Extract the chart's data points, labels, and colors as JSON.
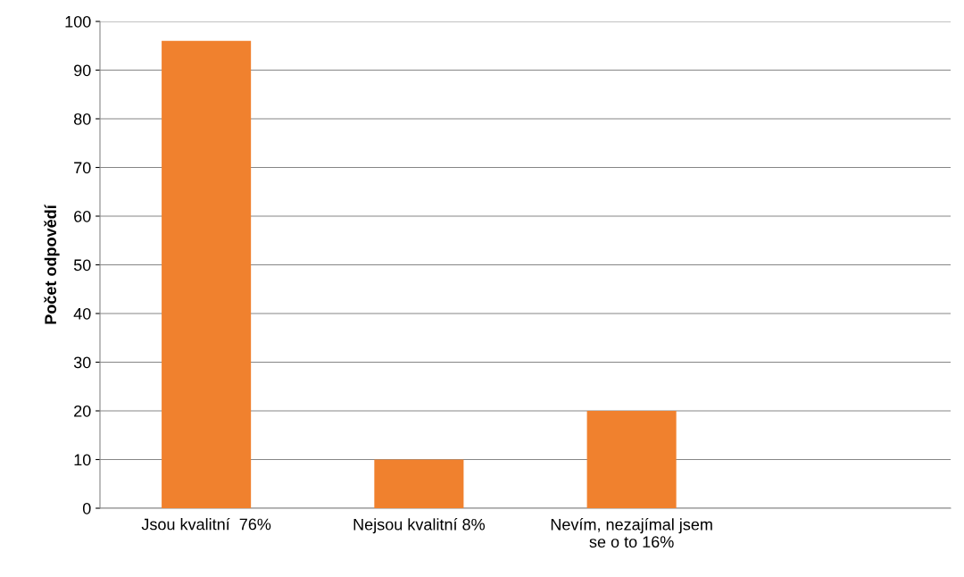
{
  "chart_data": {
    "type": "bar",
    "ylabel": "Počet odpovědí",
    "categories": [
      "Jsou kvalitní  76%",
      "Nejsou kvalitní 8%",
      "Nevím, nezajímal jsem\nse o to 16%",
      null
    ],
    "values": [
      96,
      10,
      20,
      null
    ],
    "color": "#f0812e",
    "ylim": [
      0,
      100
    ],
    "yticks": [
      0,
      10,
      20,
      30,
      40,
      50,
      60,
      70,
      80,
      90,
      100
    ],
    "grid": "y",
    "legend": false
  }
}
